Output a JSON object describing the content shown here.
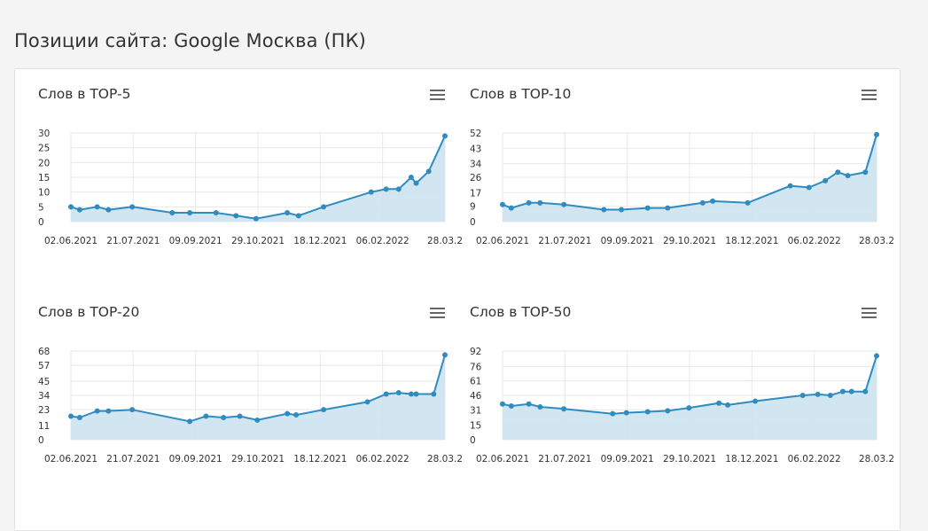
{
  "page": {
    "title": "Позиции сайта: Google Москва (ПК)"
  },
  "colors": {
    "line": "#2f8bc0",
    "area": "#cde3f1",
    "grid": "#e8e8e8",
    "menu_icon": "#666666"
  },
  "icons": {
    "chart_menu": "hamburger-icon"
  },
  "chart_data": [
    {
      "type": "area",
      "title": "Слов в TOP-5",
      "x_tick_labels": [
        "02.06.2021",
        "21.07.2021",
        "09.09.2021",
        "29.10.2021",
        "18.12.2021",
        "06.02.2022",
        "28.03.2"
      ],
      "y_ticks": [
        0,
        5,
        10,
        15,
        20,
        25,
        30
      ],
      "ylim": [
        0,
        30
      ],
      "x": [
        "2021-06-02",
        "2021-06-09",
        "2021-06-23",
        "2021-07-02",
        "2021-07-21",
        "2021-08-22",
        "2021-09-05",
        "2021-09-26",
        "2021-10-12",
        "2021-10-28",
        "2021-11-22",
        "2021-12-01",
        "2021-12-21",
        "2022-01-28",
        "2022-02-09",
        "2022-02-19",
        "2022-03-01",
        "2022-03-05",
        "2022-03-15",
        "2022-03-28"
      ],
      "values": [
        5,
        4,
        5,
        4,
        5,
        3,
        3,
        3,
        2,
        1,
        3,
        2,
        5,
        10,
        11,
        11,
        15,
        13,
        17,
        29
      ]
    },
    {
      "type": "area",
      "title": "Слов в TOP-10",
      "x_tick_labels": [
        "02.06.2021",
        "21.07.2021",
        "09.09.2021",
        "29.10.2021",
        "18.12.2021",
        "06.02.2022",
        "28.03.2"
      ],
      "y_ticks": [
        0,
        9,
        17,
        26,
        34,
        43,
        52
      ],
      "ylim": [
        0,
        52
      ],
      "x": [
        "2021-06-02",
        "2021-06-09",
        "2021-06-23",
        "2021-07-02",
        "2021-07-21",
        "2021-08-22",
        "2021-09-05",
        "2021-09-26",
        "2021-10-12",
        "2021-11-09",
        "2021-11-17",
        "2021-12-15",
        "2022-01-18",
        "2022-02-02",
        "2022-02-15",
        "2022-02-25",
        "2022-03-05",
        "2022-03-19",
        "2022-03-28"
      ],
      "values": [
        10,
        8,
        11,
        11,
        10,
        7,
        7,
        8,
        8,
        11,
        12,
        11,
        21,
        20,
        24,
        29,
        27,
        29,
        51
      ]
    },
    {
      "type": "area",
      "title": "Слов в TOP-20",
      "x_tick_labels": [
        "02.06.2021",
        "21.07.2021",
        "09.09.2021",
        "29.10.2021",
        "18.12.2021",
        "06.02.2022",
        "28.03.2"
      ],
      "y_ticks": [
        0,
        11,
        23,
        34,
        45,
        57,
        68
      ],
      "ylim": [
        0,
        68
      ],
      "x": [
        "2021-06-02",
        "2021-06-09",
        "2021-06-23",
        "2021-07-02",
        "2021-07-21",
        "2021-09-05",
        "2021-09-18",
        "2021-10-02",
        "2021-10-15",
        "2021-10-29",
        "2021-11-22",
        "2021-11-29",
        "2021-12-21",
        "2022-01-25",
        "2022-02-09",
        "2022-02-19",
        "2022-03-01",
        "2022-03-05",
        "2022-03-19",
        "2022-03-28"
      ],
      "values": [
        18,
        17,
        22,
        22,
        23,
        14,
        18,
        17,
        18,
        15,
        20,
        19,
        23,
        29,
        35,
        36,
        35,
        35,
        35,
        65
      ]
    },
    {
      "type": "area",
      "title": "Слов в TOP-50",
      "x_tick_labels": [
        "02.06.2021",
        "21.07.2021",
        "09.09.2021",
        "29.10.2021",
        "18.12.2021",
        "06.02.2022",
        "28.03.2"
      ],
      "y_ticks": [
        0,
        15,
        31,
        46,
        61,
        76,
        92
      ],
      "ylim": [
        0,
        92
      ],
      "x": [
        "2021-06-02",
        "2021-06-09",
        "2021-06-23",
        "2021-07-02",
        "2021-07-21",
        "2021-08-29",
        "2021-09-09",
        "2021-09-26",
        "2021-10-12",
        "2021-10-29",
        "2021-11-22",
        "2021-11-29",
        "2021-12-21",
        "2022-01-28",
        "2022-02-09",
        "2022-02-19",
        "2022-03-01",
        "2022-03-08",
        "2022-03-19",
        "2022-03-28"
      ],
      "values": [
        37,
        35,
        37,
        34,
        32,
        27,
        28,
        29,
        30,
        33,
        38,
        36,
        40,
        46,
        47,
        46,
        50,
        50,
        50,
        87
      ]
    }
  ]
}
